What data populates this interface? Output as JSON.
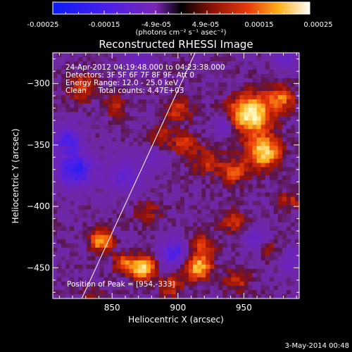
{
  "colorbar": {
    "tick_labels": [
      "-0.00025",
      "-0.00015",
      "-4.9e-05",
      "4.9e-05",
      "0.00015",
      "0.00025"
    ],
    "units": "(photons cm⁻² s⁻¹ asec⁻²)"
  },
  "chart_data": {
    "type": "heatmap",
    "title": "Reconstructed RHESSI Image",
    "xlabel": "Heliocentric X (arcsec)",
    "ylabel": "Heliocentric Y (arcsec)",
    "xlim": [
      805,
      992
    ],
    "ylim": [
      -475,
      -275
    ],
    "x_ticks": [
      850,
      900,
      950
    ],
    "y_ticks": [
      -300,
      -350,
      -400,
      -450
    ],
    "x_tick_labels": [
      "850",
      "900",
      "950"
    ],
    "y_tick_labels": [
      "−300",
      "−350",
      "−400",
      "−450"
    ],
    "info_lines": [
      "24-Apr-2012 04:19:48.000 to 04:23:38.000",
      "Detectors: 3F 5F 6F 7F 8F 9F, Att 0",
      "Energy Range: 12.0 - 25.0 keV",
      "Clean     Total counts: 4.47E+03"
    ],
    "peak_label": "Position of Peak = [954,-333]",
    "peak": [
      954,
      -333
    ],
    "limb_line": [
      [
        827,
        -475
      ],
      [
        913,
        -275
      ]
    ],
    "sources": [
      {
        "x": 955,
        "y": -325,
        "amp": 1.0,
        "sigma": 11
      },
      {
        "x": 965,
        "y": -356,
        "amp": 0.85,
        "sigma": 9
      },
      {
        "x": 978,
        "y": -312,
        "amp": 0.55,
        "sigma": 7
      },
      {
        "x": 943,
        "y": -372,
        "amp": 0.45,
        "sigma": 7
      },
      {
        "x": 900,
        "y": -322,
        "amp": 0.4,
        "sigma": 7
      },
      {
        "x": 905,
        "y": -349,
        "amp": 0.45,
        "sigma": 6
      },
      {
        "x": 888,
        "y": -343,
        "amp": 0.3,
        "sigma": 6
      },
      {
        "x": 923,
        "y": -363,
        "amp": 0.35,
        "sigma": 8
      },
      {
        "x": 828,
        "y": -303,
        "amp": 0.4,
        "sigma": 8
      },
      {
        "x": 852,
        "y": -318,
        "amp": 0.35,
        "sigma": 6
      },
      {
        "x": 877,
        "y": -405,
        "amp": 0.3,
        "sigma": 7
      },
      {
        "x": 918,
        "y": -432,
        "amp": 0.4,
        "sigma": 7
      },
      {
        "x": 942,
        "y": -412,
        "amp": 0.35,
        "sigma": 7
      },
      {
        "x": 967,
        "y": -435,
        "amp": 0.3,
        "sigma": 7
      },
      {
        "x": 985,
        "y": -395,
        "amp": 0.3,
        "sigma": 6
      },
      {
        "x": 842,
        "y": -428,
        "amp": 0.75,
        "sigma": 6
      },
      {
        "x": 873,
        "y": -450,
        "amp": 0.85,
        "sigma": 7
      },
      {
        "x": 858,
        "y": -446,
        "amp": 0.5,
        "sigma": 5
      },
      {
        "x": 915,
        "y": -450,
        "amp": 0.8,
        "sigma": 7
      },
      {
        "x": 895,
        "y": -465,
        "amp": 0.4,
        "sigma": 6
      },
      {
        "x": 945,
        "y": -460,
        "amp": 0.35,
        "sigma": 7
      },
      {
        "x": 835,
        "y": -475,
        "amp": 0.3,
        "sigma": 6
      },
      {
        "x": 822,
        "y": -370,
        "amp": -0.75,
        "sigma": 10
      },
      {
        "x": 815,
        "y": -345,
        "amp": -0.6,
        "sigma": 8
      },
      {
        "x": 860,
        "y": -375,
        "amp": -0.4,
        "sigma": 10
      },
      {
        "x": 897,
        "y": -438,
        "amp": -0.6,
        "sigma": 8
      },
      {
        "x": 883,
        "y": -362,
        "amp": -0.3,
        "sigma": 6
      },
      {
        "x": 960,
        "y": -428,
        "amp": -0.4,
        "sigma": 7
      },
      {
        "x": 986,
        "y": -445,
        "amp": -0.35,
        "sigma": 7
      },
      {
        "x": 935,
        "y": -335,
        "amp": -0.35,
        "sigma": 6
      },
      {
        "x": 980,
        "y": -280,
        "amp": -0.4,
        "sigma": 6
      },
      {
        "x": 870,
        "y": -280,
        "amp": -0.3,
        "sigma": 8
      }
    ]
  },
  "footer": {
    "date": "3-May-2014 00:48"
  }
}
